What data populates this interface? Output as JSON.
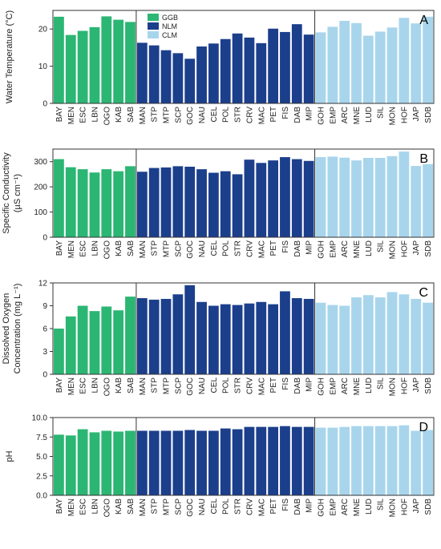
{
  "colors": {
    "GGB": "#2bb673",
    "NLM": "#1c3f8c",
    "CLM": "#a8d5ec"
  },
  "legend": [
    "GGB",
    "NLM",
    "CLM"
  ],
  "chart_data": [
    {
      "type": "bar",
      "panel": "A",
      "ylabel_lines": [
        "Water Temperature (°C)"
      ],
      "ylim": [
        0,
        25
      ],
      "yticks": [
        0,
        10,
        20
      ],
      "categories": [
        "BAY",
        "MEN",
        "ESC",
        "LBN",
        "OGO",
        "KAB",
        "SAB",
        "MAN",
        "STP",
        "MTP",
        "SCP",
        "GOC",
        "NAU",
        "CEL",
        "POL",
        "STR",
        "CRV",
        "MAC",
        "PET",
        "FIS",
        "DAB",
        "MIP",
        "GOH",
        "EMP",
        "ARC",
        "MNE",
        "LUD",
        "SIL",
        "MON",
        "HOF",
        "JAP",
        "SDB"
      ],
      "groups": [
        "GGB",
        "GGB",
        "GGB",
        "GGB",
        "GGB",
        "GGB",
        "GGB",
        "NLM",
        "NLM",
        "NLM",
        "NLM",
        "NLM",
        "NLM",
        "NLM",
        "NLM",
        "NLM",
        "NLM",
        "NLM",
        "NLM",
        "NLM",
        "NLM",
        "NLM",
        "CLM",
        "CLM",
        "CLM",
        "CLM",
        "CLM",
        "CLM",
        "CLM",
        "CLM",
        "CLM",
        "CLM"
      ],
      "values": [
        23.3,
        18.4,
        19.5,
        20.5,
        23.4,
        22.5,
        21.9,
        16.3,
        15.6,
        14.3,
        13.5,
        12.0,
        15.3,
        16.1,
        17.3,
        18.8,
        17.7,
        16.2,
        20.1,
        19.2,
        21.3,
        18.5,
        19.1,
        20.6,
        22.2,
        21.6,
        18.2,
        19.3,
        20.4,
        23.0,
        21.5,
        23.3
      ],
      "grid": false
    },
    {
      "type": "bar",
      "panel": "B",
      "ylabel_lines": [
        "Specific Conductivity",
        "(µS cm⁻¹)"
      ],
      "ylim": [
        0,
        350
      ],
      "yticks": [
        0,
        100,
        200,
        300
      ],
      "categories": [
        "BAY",
        "MEN",
        "ESC",
        "LBN",
        "OGO",
        "KAB",
        "SAB",
        "MAN",
        "STP",
        "MTP",
        "SCP",
        "GOC",
        "NAU",
        "CEL",
        "POL",
        "STR",
        "CRV",
        "MAC",
        "PET",
        "FIS",
        "DAB",
        "MIP",
        "GOH",
        "EMP",
        "ARC",
        "MNE",
        "LUD",
        "SIL",
        "MON",
        "HOF",
        "JAP",
        "SDB"
      ],
      "groups": [
        "GGB",
        "GGB",
        "GGB",
        "GGB",
        "GGB",
        "GGB",
        "GGB",
        "NLM",
        "NLM",
        "NLM",
        "NLM",
        "NLM",
        "NLM",
        "NLM",
        "NLM",
        "NLM",
        "NLM",
        "NLM",
        "NLM",
        "NLM",
        "NLM",
        "NLM",
        "CLM",
        "CLM",
        "CLM",
        "CLM",
        "CLM",
        "CLM",
        "CLM",
        "CLM",
        "CLM",
        "CLM"
      ],
      "values": [
        310,
        278,
        270,
        257,
        270,
        262,
        282,
        260,
        275,
        277,
        282,
        280,
        270,
        256,
        262,
        250,
        308,
        295,
        305,
        318,
        310,
        303,
        318,
        320,
        316,
        305,
        315,
        315,
        322,
        340,
        283,
        290
      ],
      "grid": false
    },
    {
      "type": "bar",
      "panel": "C",
      "ylabel_lines": [
        "Dissolved Oxygen",
        "Concentration (mg L⁻¹)"
      ],
      "ylim": [
        0,
        12
      ],
      "yticks": [
        0,
        3,
        6,
        9,
        12
      ],
      "categories": [
        "BAY",
        "MEN",
        "ESC",
        "LBN",
        "OGO",
        "KAB",
        "SAB",
        "MAN",
        "STP",
        "MTP",
        "SCP",
        "GOC",
        "NAU",
        "CEL",
        "POL",
        "STR",
        "CRV",
        "MAC",
        "PET",
        "FIS",
        "DAB",
        "MIP",
        "GOH",
        "EMP",
        "ARC",
        "MNE",
        "LUD",
        "SIL",
        "MON",
        "HOF",
        "JAP",
        "SDB"
      ],
      "groups": [
        "GGB",
        "GGB",
        "GGB",
        "GGB",
        "GGB",
        "GGB",
        "GGB",
        "NLM",
        "NLM",
        "NLM",
        "NLM",
        "NLM",
        "NLM",
        "NLM",
        "NLM",
        "NLM",
        "NLM",
        "NLM",
        "NLM",
        "NLM",
        "NLM",
        "NLM",
        "CLM",
        "CLM",
        "CLM",
        "CLM",
        "CLM",
        "CLM",
        "CLM",
        "CLM",
        "CLM",
        "CLM"
      ],
      "values": [
        6.0,
        7.6,
        9.0,
        8.3,
        8.9,
        8.4,
        10.2,
        10.0,
        9.8,
        9.9,
        10.5,
        11.7,
        9.5,
        9.0,
        9.2,
        9.1,
        9.3,
        9.5,
        9.2,
        10.9,
        10.0,
        9.9,
        9.4,
        9.1,
        9.0,
        10.1,
        10.4,
        10.1,
        10.8,
        10.5,
        9.9,
        9.4
      ],
      "grid": false
    },
    {
      "type": "bar",
      "panel": "D",
      "ylabel_lines": [
        "pH"
      ],
      "ylim": [
        0,
        10
      ],
      "yticks": [
        0.0,
        2.5,
        5.0,
        7.5,
        10.0
      ],
      "ytick_labels": [
        "0.0",
        "2.5",
        "5.0",
        "7.5",
        "10.0"
      ],
      "categories": [
        "BAY",
        "MEN",
        "ESC",
        "LBN",
        "OGO",
        "KAB",
        "SAB",
        "MAN",
        "STP",
        "MTP",
        "SCP",
        "GOC",
        "NAU",
        "CEL",
        "POL",
        "STR",
        "CRV",
        "MAC",
        "PET",
        "FIS",
        "DAB",
        "MIP",
        "GOH",
        "EMP",
        "ARC",
        "MNE",
        "LUD",
        "SIL",
        "MON",
        "HOF",
        "JAP",
        "SDB"
      ],
      "groups": [
        "GGB",
        "GGB",
        "GGB",
        "GGB",
        "GGB",
        "GGB",
        "GGB",
        "NLM",
        "NLM",
        "NLM",
        "NLM",
        "NLM",
        "NLM",
        "NLM",
        "NLM",
        "NLM",
        "NLM",
        "NLM",
        "NLM",
        "NLM",
        "NLM",
        "NLM",
        "CLM",
        "CLM",
        "CLM",
        "CLM",
        "CLM",
        "CLM",
        "CLM",
        "CLM",
        "CLM",
        "CLM"
      ],
      "values": [
        7.8,
        7.7,
        8.5,
        8.1,
        8.3,
        8.2,
        8.3,
        8.3,
        8.3,
        8.3,
        8.3,
        8.4,
        8.3,
        8.3,
        8.6,
        8.5,
        8.8,
        8.8,
        8.8,
        8.9,
        8.8,
        8.8,
        8.7,
        8.7,
        8.8,
        8.9,
        8.9,
        8.9,
        8.9,
        9.0,
        8.3,
        8.4
      ],
      "grid": false
    }
  ]
}
